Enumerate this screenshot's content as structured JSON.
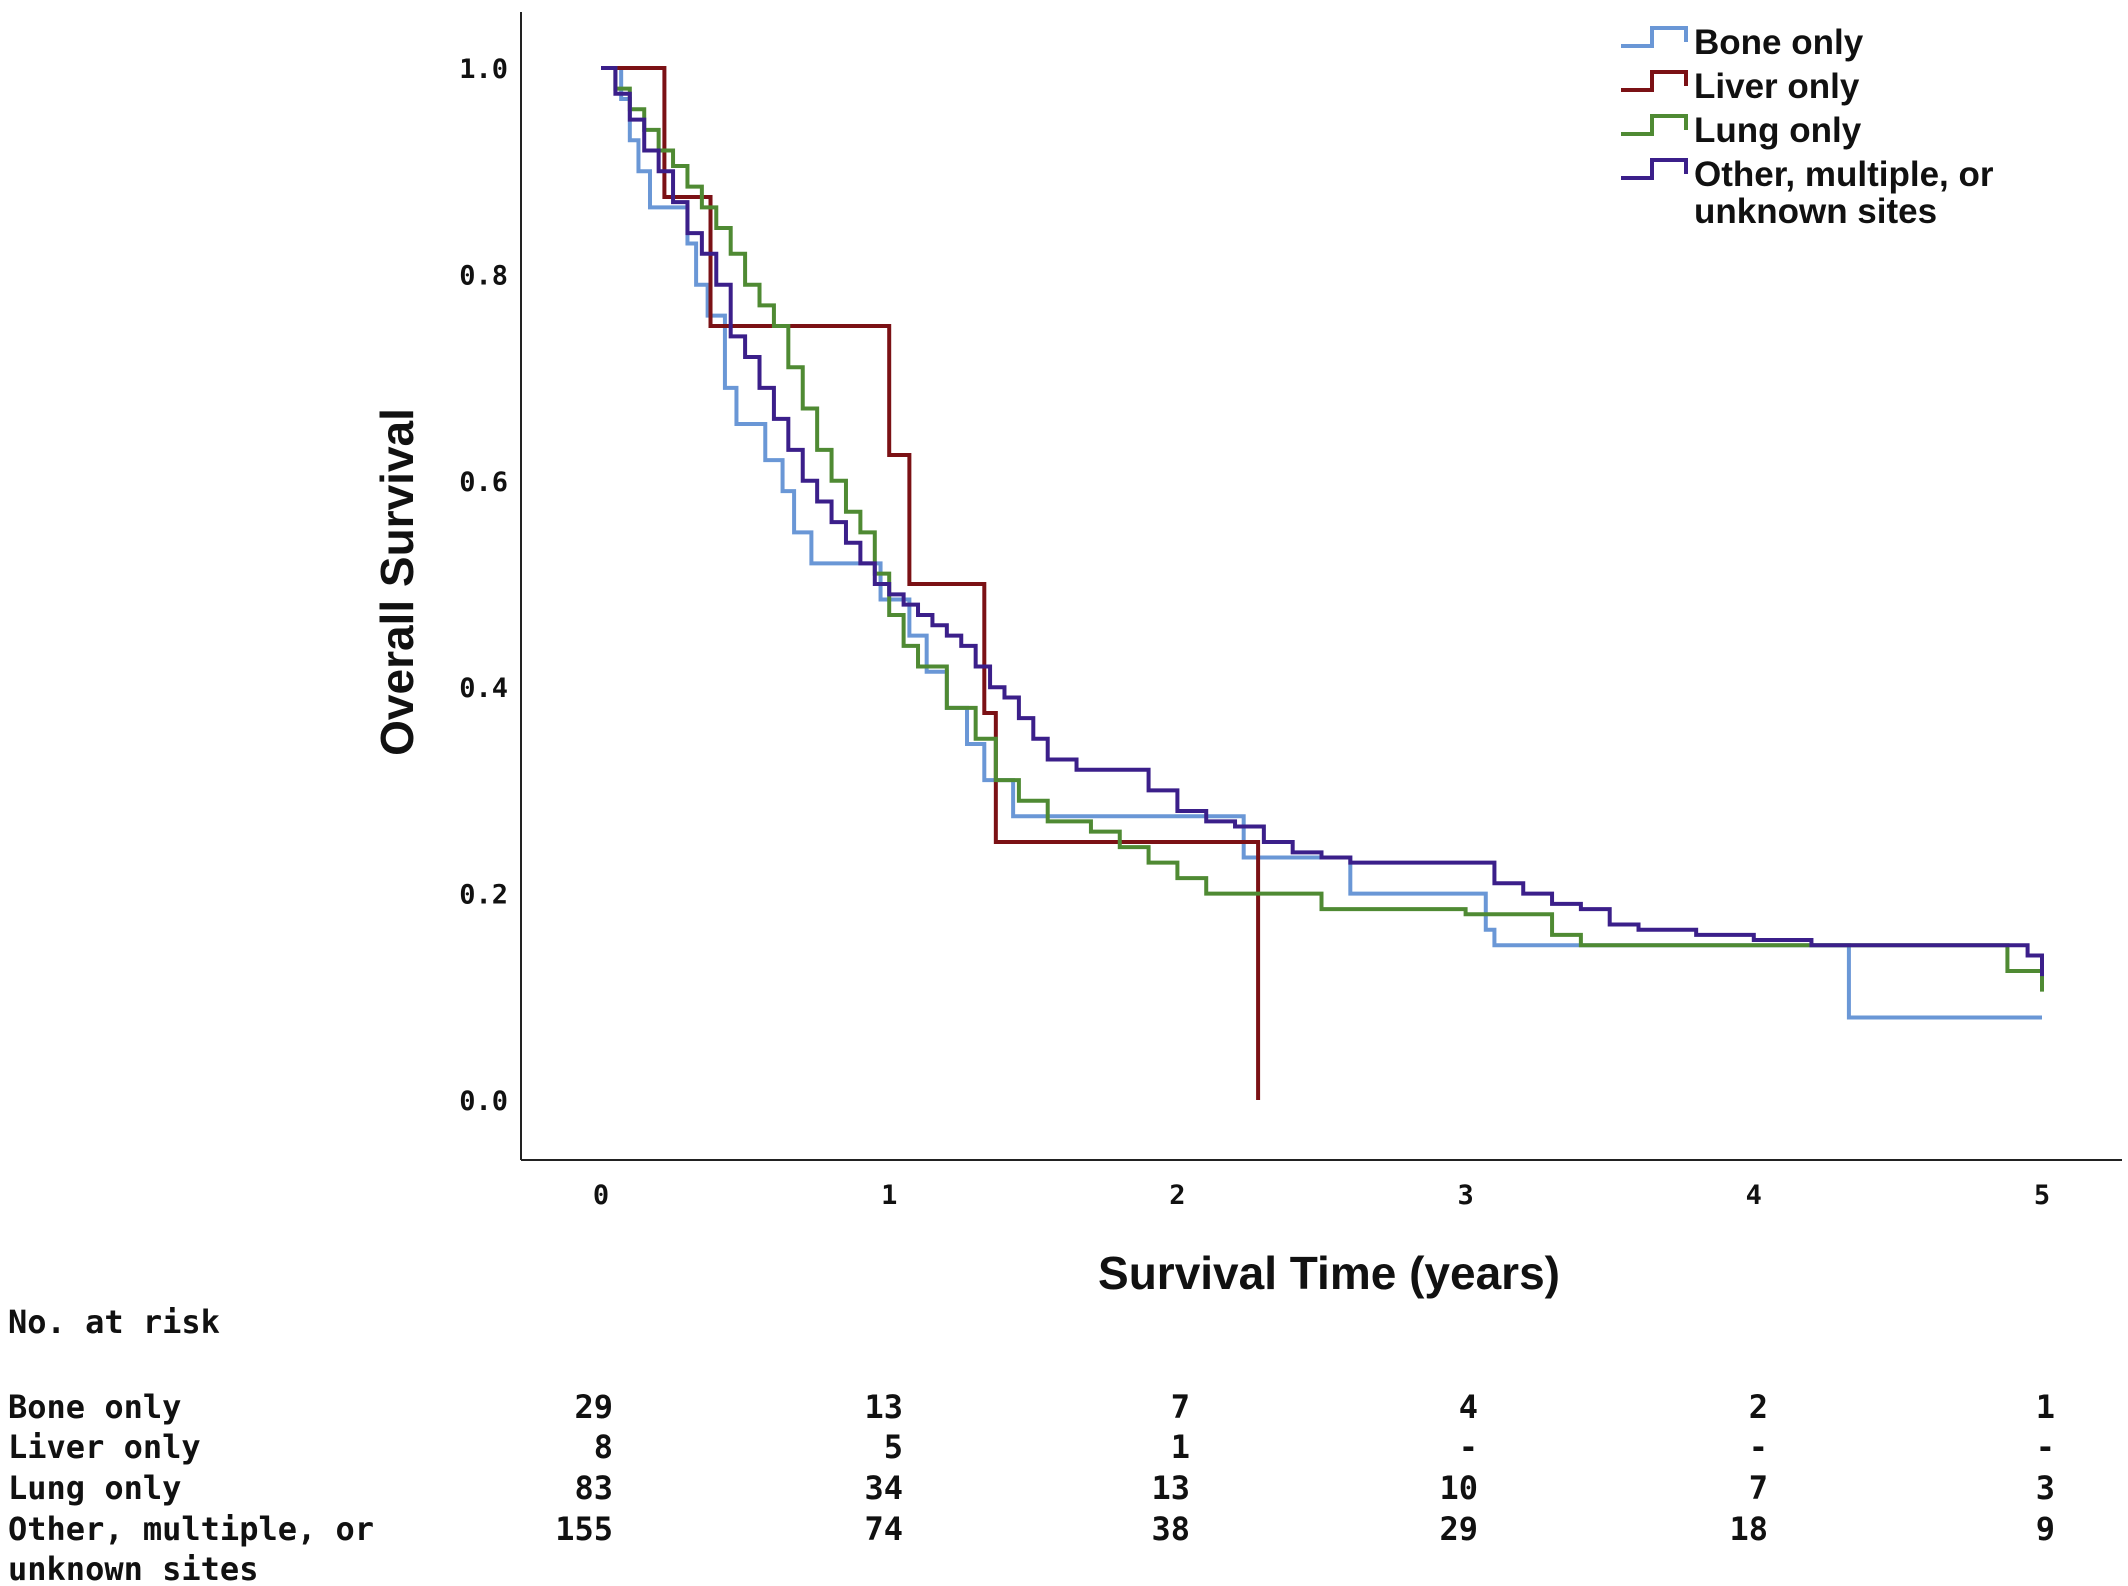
{
  "chart_data": {
    "type": "line",
    "step": true,
    "title": "",
    "xlabel": "Survival Time (years)",
    "ylabel": "Overall Survival",
    "xlim": [
      0,
      5
    ],
    "ylim": [
      0,
      1
    ],
    "x_ticks": [
      "0",
      "1",
      "2",
      "3",
      "4",
      "5"
    ],
    "y_ticks": [
      "0.0",
      "0.2",
      "0.4",
      "0.6",
      "0.8",
      "1.0"
    ],
    "grid": false,
    "legend_position": "top-right",
    "series": [
      {
        "name": "Bone only",
        "color": "#6a97d6",
        "points": [
          [
            0,
            1.0
          ],
          [
            0.07,
            0.97
          ],
          [
            0.1,
            0.93
          ],
          [
            0.13,
            0.9
          ],
          [
            0.17,
            0.865
          ],
          [
            0.3,
            0.83
          ],
          [
            0.33,
            0.79
          ],
          [
            0.37,
            0.76
          ],
          [
            0.43,
            0.69
          ],
          [
            0.47,
            0.655
          ],
          [
            0.57,
            0.62
          ],
          [
            0.63,
            0.59
          ],
          [
            0.67,
            0.55
          ],
          [
            0.73,
            0.52
          ],
          [
            0.9,
            0.52
          ],
          [
            0.97,
            0.485
          ],
          [
            1.07,
            0.45
          ],
          [
            1.13,
            0.415
          ],
          [
            1.2,
            0.38
          ],
          [
            1.27,
            0.345
          ],
          [
            1.33,
            0.31
          ],
          [
            1.43,
            0.275
          ],
          [
            1.6,
            0.275
          ],
          [
            2.2,
            0.275
          ],
          [
            2.23,
            0.235
          ],
          [
            2.6,
            0.2
          ],
          [
            3.07,
            0.165
          ],
          [
            3.1,
            0.15
          ],
          [
            4.32,
            0.15
          ],
          [
            4.33,
            0.08
          ],
          [
            5.0,
            0.08
          ]
        ]
      },
      {
        "name": "Liver only",
        "color": "#7b1115",
        "points": [
          [
            0,
            1.0
          ],
          [
            0.22,
            0.875
          ],
          [
            0.38,
            0.75
          ],
          [
            1.0,
            0.625
          ],
          [
            1.07,
            0.5
          ],
          [
            1.33,
            0.375
          ],
          [
            1.37,
            0.25
          ],
          [
            2.28,
            0.0
          ]
        ]
      },
      {
        "name": "Lung only",
        "color": "#4f8a33",
        "points": [
          [
            0,
            1.0
          ],
          [
            0.05,
            0.98
          ],
          [
            0.1,
            0.96
          ],
          [
            0.15,
            0.94
          ],
          [
            0.2,
            0.92
          ],
          [
            0.25,
            0.905
          ],
          [
            0.3,
            0.885
          ],
          [
            0.35,
            0.865
          ],
          [
            0.4,
            0.845
          ],
          [
            0.45,
            0.82
          ],
          [
            0.5,
            0.79
          ],
          [
            0.55,
            0.77
          ],
          [
            0.6,
            0.75
          ],
          [
            0.65,
            0.71
          ],
          [
            0.7,
            0.67
          ],
          [
            0.75,
            0.63
          ],
          [
            0.8,
            0.6
          ],
          [
            0.85,
            0.57
          ],
          [
            0.9,
            0.55
          ],
          [
            0.95,
            0.51
          ],
          [
            1.0,
            0.47
          ],
          [
            1.05,
            0.44
          ],
          [
            1.1,
            0.42
          ],
          [
            1.2,
            0.38
          ],
          [
            1.3,
            0.35
          ],
          [
            1.37,
            0.31
          ],
          [
            1.45,
            0.29
          ],
          [
            1.55,
            0.27
          ],
          [
            1.7,
            0.26
          ],
          [
            1.8,
            0.245
          ],
          [
            1.9,
            0.23
          ],
          [
            2.0,
            0.215
          ],
          [
            2.1,
            0.2
          ],
          [
            2.2,
            0.2
          ],
          [
            2.5,
            0.185
          ],
          [
            3.0,
            0.18
          ],
          [
            3.1,
            0.18
          ],
          [
            3.3,
            0.16
          ],
          [
            3.4,
            0.15
          ],
          [
            4.0,
            0.15
          ],
          [
            4.8,
            0.15
          ],
          [
            4.88,
            0.125
          ],
          [
            5.0,
            0.105
          ]
        ]
      },
      {
        "name": "Other, multiple, or unknown sites",
        "color": "#3b1f8a",
        "points": [
          [
            0,
            1.0
          ],
          [
            0.05,
            0.975
          ],
          [
            0.1,
            0.95
          ],
          [
            0.15,
            0.92
          ],
          [
            0.2,
            0.9
          ],
          [
            0.25,
            0.87
          ],
          [
            0.3,
            0.84
          ],
          [
            0.35,
            0.82
          ],
          [
            0.4,
            0.79
          ],
          [
            0.45,
            0.74
          ],
          [
            0.5,
            0.72
          ],
          [
            0.55,
            0.69
          ],
          [
            0.6,
            0.66
          ],
          [
            0.65,
            0.63
          ],
          [
            0.7,
            0.6
          ],
          [
            0.75,
            0.58
          ],
          [
            0.8,
            0.56
          ],
          [
            0.85,
            0.54
          ],
          [
            0.9,
            0.52
          ],
          [
            0.95,
            0.5
          ],
          [
            1.0,
            0.49
          ],
          [
            1.05,
            0.48
          ],
          [
            1.1,
            0.47
          ],
          [
            1.15,
            0.46
          ],
          [
            1.2,
            0.45
          ],
          [
            1.25,
            0.44
          ],
          [
            1.3,
            0.42
          ],
          [
            1.35,
            0.4
          ],
          [
            1.4,
            0.39
          ],
          [
            1.45,
            0.37
          ],
          [
            1.5,
            0.35
          ],
          [
            1.55,
            0.33
          ],
          [
            1.65,
            0.32
          ],
          [
            1.8,
            0.32
          ],
          [
            1.9,
            0.3
          ],
          [
            2.0,
            0.28
          ],
          [
            2.1,
            0.27
          ],
          [
            2.2,
            0.265
          ],
          [
            2.3,
            0.25
          ],
          [
            2.4,
            0.24
          ],
          [
            2.5,
            0.235
          ],
          [
            2.6,
            0.23
          ],
          [
            2.8,
            0.23
          ],
          [
            3.0,
            0.23
          ],
          [
            3.1,
            0.21
          ],
          [
            3.2,
            0.2
          ],
          [
            3.3,
            0.19
          ],
          [
            3.4,
            0.185
          ],
          [
            3.5,
            0.17
          ],
          [
            3.6,
            0.165
          ],
          [
            3.8,
            0.16
          ],
          [
            4.0,
            0.155
          ],
          [
            4.2,
            0.15
          ],
          [
            4.9,
            0.15
          ],
          [
            4.95,
            0.14
          ],
          [
            5.0,
            0.12
          ]
        ]
      }
    ]
  },
  "risk_table": {
    "title": "No. at risk",
    "times": [
      "0",
      "1",
      "2",
      "3",
      "4",
      "5"
    ],
    "rows": [
      {
        "label_lines": [
          "Bone only"
        ],
        "values": [
          "29",
          "13",
          "7",
          "4",
          "2",
          "1"
        ]
      },
      {
        "label_lines": [
          "Liver only"
        ],
        "values": [
          "8",
          "5",
          "1",
          "-",
          "-",
          "-"
        ]
      },
      {
        "label_lines": [
          "Lung only"
        ],
        "values": [
          "83",
          "34",
          "13",
          "10",
          "7",
          "3"
        ]
      },
      {
        "label_lines": [
          "Other, multiple, or",
          "unknown sites"
        ],
        "values": [
          "155",
          "74",
          "38",
          "29",
          "18",
          "9"
        ]
      }
    ]
  },
  "legend": {
    "items": [
      {
        "label_lines": [
          "Bone only"
        ],
        "color": "#6a97d6"
      },
      {
        "label_lines": [
          "Liver only"
        ],
        "color": "#7b1115"
      },
      {
        "label_lines": [
          "Lung only"
        ],
        "color": "#4f8a33"
      },
      {
        "label_lines": [
          "Other, multiple, or",
          "unknown sites"
        ],
        "color": "#3b1f8a"
      }
    ]
  }
}
